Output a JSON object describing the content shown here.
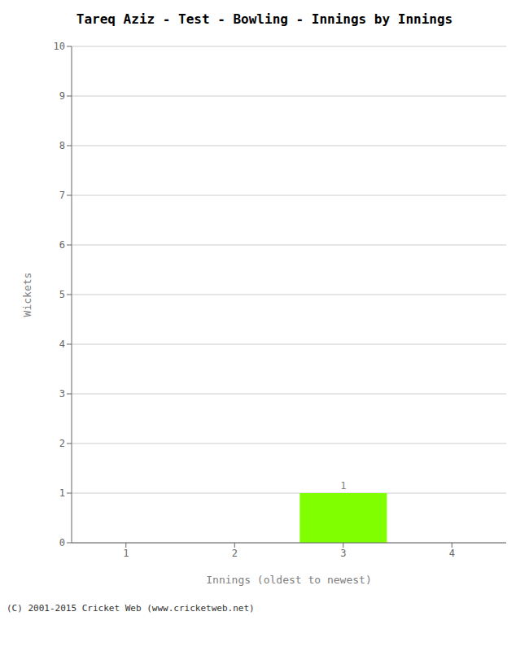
{
  "chart_data": {
    "type": "bar",
    "title": "Tareq Aziz - Test - Bowling - Innings by Innings",
    "xlabel": "Innings (oldest to newest)",
    "ylabel": "Wickets",
    "categories": [
      1,
      2,
      3,
      4
    ],
    "values": [
      0,
      0,
      1,
      0
    ],
    "color": "#7fff00",
    "ylim": [
      0,
      10
    ],
    "yticks": [
      0,
      1,
      2,
      3,
      4,
      5,
      6,
      7,
      8,
      9,
      10
    ],
    "grid": true,
    "data_labels": true,
    "footer": "(C) 2001-2015 Cricket Web (www.cricketweb.net)"
  }
}
